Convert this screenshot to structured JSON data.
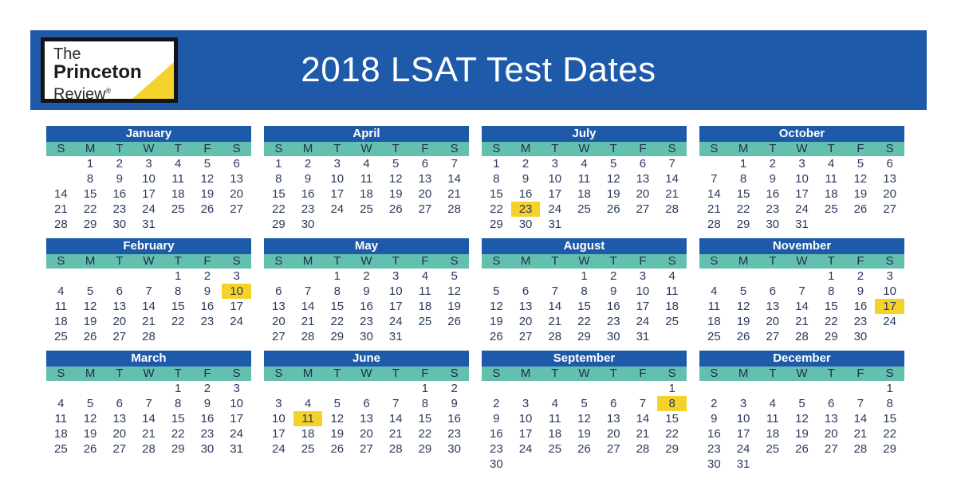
{
  "header": {
    "title": "2018 LSAT Test Dates",
    "logo": {
      "line1": "The",
      "line2": "Princeton",
      "line3": "Review",
      "registered_mark": "®"
    }
  },
  "colors": {
    "header_blue": "#1e5aa9",
    "month_header_blue": "#1e5aa9",
    "weekday_teal": "#63c0ae",
    "highlight_yellow": "#f5d229",
    "date_text": "#2c3a5e",
    "weekday_text": "#1f2d4d",
    "title_text": "#ffffff",
    "logo_triangle_yellow": "#f5d229"
  },
  "weekday_headers": [
    "S",
    "M",
    "T",
    "W",
    "T",
    "F",
    "S"
  ],
  "highlighted_test_dates": [
    "February 10",
    "June 11",
    "July 23",
    "September 8",
    "November 17"
  ],
  "months": [
    {
      "name": "January",
      "highlight": null,
      "weeks": [
        [
          "",
          "1",
          "2",
          "3",
          "4",
          "5",
          "6"
        ],
        [
          "",
          "8",
          "9",
          "10",
          "11",
          "12",
          "13"
        ],
        [
          "14",
          "15",
          "16",
          "17",
          "18",
          "19",
          "20"
        ],
        [
          "21",
          "22",
          "23",
          "24",
          "25",
          "26",
          "27"
        ],
        [
          "28",
          "29",
          "30",
          "31",
          "",
          "",
          ""
        ]
      ]
    },
    {
      "name": "April",
      "highlight": null,
      "weeks": [
        [
          "1",
          "2",
          "3",
          "4",
          "5",
          "6",
          "7"
        ],
        [
          "8",
          "9",
          "10",
          "11",
          "12",
          "13",
          "14"
        ],
        [
          "15",
          "16",
          "17",
          "18",
          "19",
          "20",
          "21"
        ],
        [
          "22",
          "23",
          "24",
          "25",
          "26",
          "27",
          "28"
        ],
        [
          "29",
          "30",
          "",
          "",
          "",
          "",
          ""
        ]
      ]
    },
    {
      "name": "July",
      "highlight": "23",
      "weeks": [
        [
          "1",
          "2",
          "3",
          "4",
          "5",
          "6",
          "7"
        ],
        [
          "8",
          "9",
          "10",
          "11",
          "12",
          "13",
          "14"
        ],
        [
          "15",
          "16",
          "17",
          "18",
          "19",
          "20",
          "21"
        ],
        [
          "22",
          "23",
          "24",
          "25",
          "26",
          "27",
          "28"
        ],
        [
          "29",
          "30",
          "31",
          "",
          "",
          "",
          ""
        ]
      ]
    },
    {
      "name": "October",
      "highlight": null,
      "weeks": [
        [
          "",
          "1",
          "2",
          "3",
          "4",
          "5",
          "6"
        ],
        [
          "7",
          "8",
          "9",
          "10",
          "11",
          "12",
          "13"
        ],
        [
          "14",
          "15",
          "16",
          "17",
          "18",
          "19",
          "20"
        ],
        [
          "21",
          "22",
          "23",
          "24",
          "25",
          "26",
          "27"
        ],
        [
          "28",
          "29",
          "30",
          "31",
          "",
          "",
          ""
        ]
      ]
    },
    {
      "name": "February",
      "highlight": "10",
      "weeks": [
        [
          "",
          "",
          "",
          "",
          "1",
          "2",
          "3"
        ],
        [
          "4",
          "5",
          "6",
          "7",
          "8",
          "9",
          "10"
        ],
        [
          "11",
          "12",
          "13",
          "14",
          "15",
          "16",
          "17"
        ],
        [
          "18",
          "19",
          "20",
          "21",
          "22",
          "23",
          "24"
        ],
        [
          "25",
          "26",
          "27",
          "28",
          "",
          "",
          ""
        ]
      ]
    },
    {
      "name": "May",
      "highlight": null,
      "weeks": [
        [
          "",
          "",
          "1",
          "2",
          "3",
          "4",
          "5"
        ],
        [
          "6",
          "7",
          "8",
          "9",
          "10",
          "11",
          "12"
        ],
        [
          "13",
          "14",
          "15",
          "16",
          "17",
          "18",
          "19"
        ],
        [
          "20",
          "21",
          "22",
          "23",
          "24",
          "25",
          "26"
        ],
        [
          "27",
          "28",
          "29",
          "30",
          "31",
          "",
          ""
        ]
      ]
    },
    {
      "name": "August",
      "highlight": null,
      "weeks": [
        [
          "",
          "",
          "",
          "1",
          "2",
          "3",
          "4"
        ],
        [
          "5",
          "6",
          "7",
          "8",
          "9",
          "10",
          "11"
        ],
        [
          "12",
          "13",
          "14",
          "15",
          "16",
          "17",
          "18"
        ],
        [
          "19",
          "20",
          "21",
          "22",
          "23",
          "24",
          "25"
        ],
        [
          "26",
          "27",
          "28",
          "29",
          "30",
          "31",
          ""
        ]
      ]
    },
    {
      "name": "November",
      "highlight": "17",
      "weeks": [
        [
          "",
          "",
          "",
          "",
          "1",
          "2",
          "3"
        ],
        [
          "4",
          "5",
          "6",
          "7",
          "8",
          "9",
          "10"
        ],
        [
          "11",
          "12",
          "13",
          "14",
          "15",
          "16",
          "17"
        ],
        [
          "18",
          "19",
          "20",
          "21",
          "22",
          "23",
          "24"
        ],
        [
          "25",
          "26",
          "27",
          "28",
          "29",
          "30",
          ""
        ]
      ]
    },
    {
      "name": "March",
      "highlight": null,
      "weeks": [
        [
          "",
          "",
          "",
          "",
          "1",
          "2",
          "3"
        ],
        [
          "4",
          "5",
          "6",
          "7",
          "8",
          "9",
          "10"
        ],
        [
          "11",
          "12",
          "13",
          "14",
          "15",
          "16",
          "17"
        ],
        [
          "18",
          "19",
          "20",
          "21",
          "22",
          "23",
          "24"
        ],
        [
          "25",
          "26",
          "27",
          "28",
          "29",
          "30",
          "31"
        ]
      ]
    },
    {
      "name": "June",
      "highlight": "11",
      "weeks": [
        [
          "",
          "",
          "",
          "",
          "",
          "1",
          "2"
        ],
        [
          "3",
          "4",
          "5",
          "6",
          "7",
          "8",
          "9"
        ],
        [
          "10",
          "11",
          "12",
          "13",
          "14",
          "15",
          "16"
        ],
        [
          "17",
          "18",
          "19",
          "20",
          "21",
          "22",
          "23"
        ],
        [
          "24",
          "25",
          "26",
          "27",
          "28",
          "29",
          "30"
        ]
      ]
    },
    {
      "name": "September",
      "highlight": "8",
      "weeks": [
        [
          "",
          "",
          "",
          "",
          "",
          "",
          "1"
        ],
        [
          "2",
          "3",
          "4",
          "5",
          "6",
          "7",
          "8"
        ],
        [
          "9",
          "10",
          "11",
          "12",
          "13",
          "14",
          "15"
        ],
        [
          "16",
          "17",
          "18",
          "19",
          "20",
          "21",
          "22"
        ],
        [
          "23",
          "24",
          "25",
          "26",
          "27",
          "28",
          "29"
        ],
        [
          "30",
          "",
          "",
          "",
          "",
          "",
          ""
        ]
      ]
    },
    {
      "name": "December",
      "highlight": null,
      "weeks": [
        [
          "",
          "",
          "",
          "",
          "",
          "",
          "1"
        ],
        [
          "2",
          "3",
          "4",
          "5",
          "6",
          "7",
          "8"
        ],
        [
          "9",
          "10",
          "11",
          "12",
          "13",
          "14",
          "15"
        ],
        [
          "16",
          "17",
          "18",
          "19",
          "20",
          "21",
          "22"
        ],
        [
          "23",
          "24",
          "25",
          "26",
          "27",
          "28",
          "29"
        ],
        [
          "30",
          "31",
          "",
          "",
          "",
          "",
          ""
        ]
      ]
    }
  ]
}
